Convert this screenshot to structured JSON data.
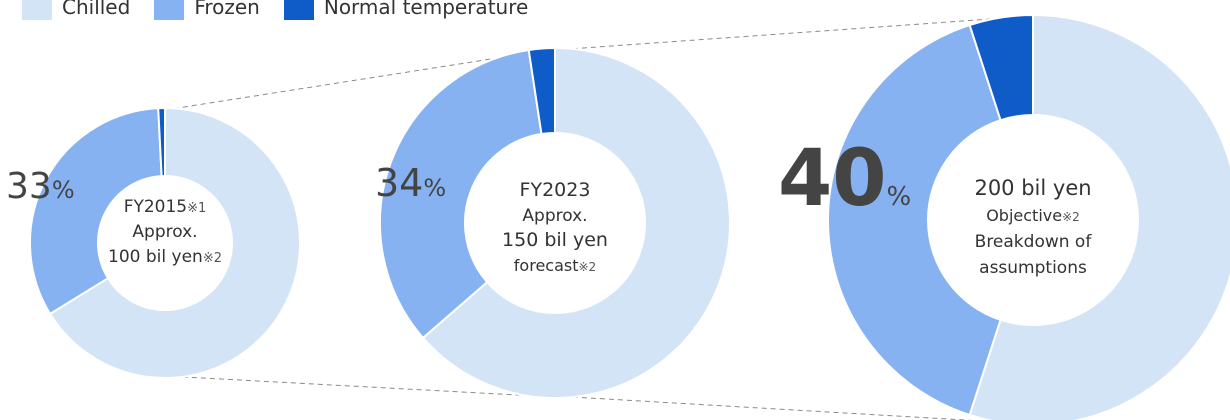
{
  "chart_data": {
    "type": "pie",
    "subtype": "donut",
    "legend": {
      "placement": "top-left",
      "entries": [
        {
          "name": "Chilled",
          "color": "#d4e4f7"
        },
        {
          "name": "Frozen",
          "color": "#86b2f2"
        },
        {
          "name": "Normal temperature",
          "color": "#0f5cc9"
        }
      ]
    },
    "categories": [
      "Chilled",
      "Frozen",
      "Normal temperature"
    ],
    "charts": [
      {
        "id": "fy2015",
        "values": [
          66.2,
          33.0,
          0.8
        ],
        "highlight_value": "33",
        "highlight_unit": "%",
        "center_lines": [
          {
            "text": "FY2015",
            "note": "※1"
          },
          {
            "text": "Approx.",
            "note": ""
          },
          {
            "text": "100 bil yen",
            "note": "※2"
          }
        ]
      },
      {
        "id": "fy2023",
        "values": [
          63.6,
          34.0,
          2.4
        ],
        "highlight_value": "34",
        "highlight_unit": "%",
        "center_lines": [
          {
            "text": "FY2023",
            "note": ""
          },
          {
            "text": "Approx.",
            "note": ""
          },
          {
            "text": "150 bil yen",
            "note": ""
          },
          {
            "text": "forecast",
            "note": "※2"
          }
        ]
      },
      {
        "id": "objective",
        "values": [
          55.0,
          40.0,
          5.0
        ],
        "highlight_value": "40",
        "highlight_unit": "%",
        "center_lines": [
          {
            "text": "200 bil yen",
            "note": ""
          },
          {
            "text": "Objective",
            "note": "※2"
          },
          {
            "text": "Breakdown of",
            "note": ""
          },
          {
            "text": "assumptions",
            "note": ""
          }
        ]
      }
    ]
  }
}
